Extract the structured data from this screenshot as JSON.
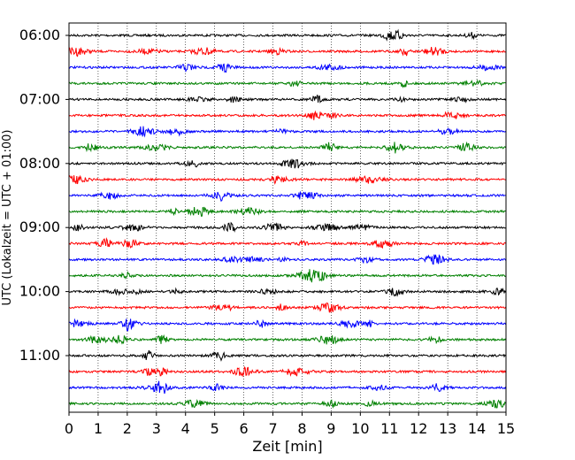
{
  "chart_data": {
    "type": "line",
    "title": "",
    "xlabel": "Zeit  [min]",
    "ylabel": "UTC (Lokalzeit = UTC + 01:00)",
    "xlim": [
      0,
      15
    ],
    "x_ticks": [
      "0",
      "1",
      "2",
      "3",
      "4",
      "5",
      "6",
      "7",
      "8",
      "9",
      "10",
      "11",
      "12",
      "13",
      "14",
      "15"
    ],
    "y_tick_labels": [
      "06:00",
      "07:00",
      "08:00",
      "09:00",
      "10:00",
      "11:00"
    ],
    "grid": "vertical dotted at each minute",
    "trace_interval_minutes": 15,
    "trace_colors": [
      "#000000",
      "#ff0000",
      "#0000ff",
      "#008000"
    ],
    "traces": [
      {
        "start": "06:00",
        "color": "#000000"
      },
      {
        "start": "06:15",
        "color": "#ff0000"
      },
      {
        "start": "06:30",
        "color": "#0000ff"
      },
      {
        "start": "06:45",
        "color": "#008000"
      },
      {
        "start": "07:00",
        "color": "#000000"
      },
      {
        "start": "07:15",
        "color": "#ff0000"
      },
      {
        "start": "07:30",
        "color": "#0000ff"
      },
      {
        "start": "07:45",
        "color": "#008000"
      },
      {
        "start": "08:00",
        "color": "#000000"
      },
      {
        "start": "08:15",
        "color": "#ff0000"
      },
      {
        "start": "08:30",
        "color": "#0000ff"
      },
      {
        "start": "08:45",
        "color": "#008000"
      },
      {
        "start": "09:00",
        "color": "#000000"
      },
      {
        "start": "09:15",
        "color": "#ff0000"
      },
      {
        "start": "09:30",
        "color": "#0000ff"
      },
      {
        "start": "09:45",
        "color": "#008000"
      },
      {
        "start": "10:00",
        "color": "#000000"
      },
      {
        "start": "10:15",
        "color": "#ff0000"
      },
      {
        "start": "10:30",
        "color": "#0000ff"
      },
      {
        "start": "10:45",
        "color": "#008000"
      },
      {
        "start": "11:00",
        "color": "#000000"
      },
      {
        "start": "11:15",
        "color": "#ff0000"
      },
      {
        "start": "11:30",
        "color": "#0000ff"
      },
      {
        "start": "11:45",
        "color": "#008000"
      }
    ]
  }
}
